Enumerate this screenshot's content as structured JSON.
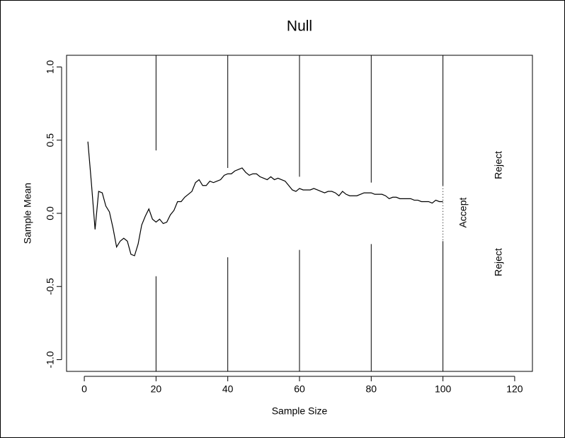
{
  "chart_data": {
    "type": "line",
    "title": "Null",
    "x_label": "Sample Size",
    "y_label": "Sample Mean",
    "x": [
      1,
      2,
      3,
      4,
      5,
      6,
      7,
      8,
      9,
      10,
      11,
      12,
      13,
      14,
      15,
      16,
      17,
      18,
      19,
      20,
      21,
      22,
      23,
      24,
      25,
      26,
      27,
      28,
      29,
      30,
      31,
      32,
      33,
      34,
      35,
      36,
      37,
      38,
      39,
      40,
      41,
      42,
      43,
      44,
      45,
      46,
      47,
      48,
      49,
      50,
      51,
      52,
      53,
      54,
      55,
      56,
      57,
      58,
      59,
      60,
      61,
      62,
      63,
      64,
      65,
      66,
      67,
      68,
      69,
      70,
      71,
      72,
      73,
      74,
      75,
      76,
      77,
      78,
      79,
      80,
      81,
      82,
      83,
      84,
      85,
      86,
      87,
      88,
      89,
      90,
      91,
      92,
      93,
      94,
      95,
      96,
      97,
      98,
      99,
      100
    ],
    "series": [
      {
        "name": "Sample Mean",
        "color": "#000000",
        "values": [
          0.49,
          0.2,
          -0.11,
          0.15,
          0.14,
          0.05,
          0.01,
          -0.1,
          -0.23,
          -0.19,
          -0.17,
          -0.19,
          -0.28,
          -0.29,
          -0.21,
          -0.08,
          -0.02,
          0.03,
          -0.04,
          -0.06,
          -0.04,
          -0.07,
          -0.06,
          -0.01,
          0.02,
          0.08,
          0.08,
          0.11,
          0.13,
          0.15,
          0.21,
          0.23,
          0.19,
          0.19,
          0.22,
          0.21,
          0.22,
          0.23,
          0.26,
          0.27,
          0.27,
          0.29,
          0.3,
          0.31,
          0.28,
          0.26,
          0.27,
          0.27,
          0.25,
          0.24,
          0.23,
          0.25,
          0.23,
          0.24,
          0.23,
          0.22,
          0.19,
          0.16,
          0.15,
          0.17,
          0.16,
          0.16,
          0.16,
          0.17,
          0.16,
          0.15,
          0.14,
          0.15,
          0.15,
          0.14,
          0.12,
          0.15,
          0.13,
          0.12,
          0.12,
          0.12,
          0.13,
          0.14,
          0.14,
          0.14,
          0.13,
          0.13,
          0.13,
          0.12,
          0.1,
          0.11,
          0.11,
          0.1,
          0.1,
          0.1,
          0.1,
          0.09,
          0.09,
          0.08,
          0.08,
          0.08,
          0.07,
          0.09,
          0.08,
          0.08
        ]
      }
    ],
    "boundary_x": [
      20,
      40,
      60,
      80,
      100
    ],
    "upper_boundary": [
      0.43,
      0.31,
      0.25,
      0.21,
      0.19
    ],
    "lower_boundary": [
      -0.43,
      -0.3,
      -0.25,
      -0.21,
      -0.19
    ],
    "annotations": [
      "Reject",
      "Accept",
      "Reject"
    ],
    "xlim": [
      -4.95,
      124.95
    ],
    "ylim": [
      -1.08,
      1.08
    ],
    "xticks": [
      0,
      20,
      40,
      60,
      80,
      100,
      120
    ],
    "yticks": [
      {
        "value": -1,
        "label": "-1.0"
      },
      -0.5,
      {
        "value": 0,
        "label": "0.0"
      },
      0.5,
      {
        "value": 1,
        "label": "1.0"
      }
    ]
  }
}
